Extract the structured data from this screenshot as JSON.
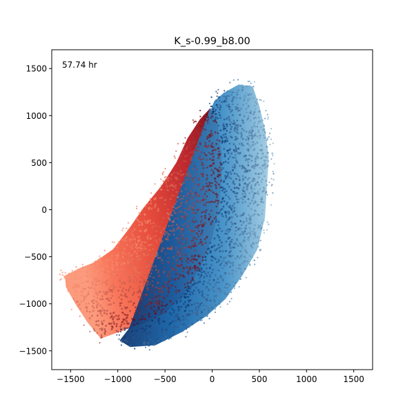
{
  "chart_data": {
    "type": "scatter",
    "title": "K_s-0.99_b8.00",
    "annotation": "57.74 hr",
    "xlabel": "",
    "ylabel": "",
    "xlim": [
      -1700,
      1700
    ],
    "ylim": [
      -1700,
      1700
    ],
    "x_ticks": [
      -1500,
      -1000,
      -500,
      0,
      500,
      1000,
      1500
    ],
    "y_ticks": [
      -1500,
      -1000,
      -500,
      0,
      500,
      1000,
      1500
    ],
    "x_tick_labels": [
      "−1500",
      "−1000",
      "−500",
      "0",
      "500",
      "1000",
      "1500"
    ],
    "y_tick_labels": [
      "−1500",
      "−1000",
      "−500",
      "0",
      "500",
      "1000",
      "1500"
    ],
    "grid": false,
    "legend": "none",
    "series": [
      {
        "colormap": "Reds",
        "dark_color": "#67000d",
        "light_color": "#fc9272",
        "inner_edge": [
          [
            -20,
            1080
          ],
          [
            60,
            900
          ],
          [
            100,
            600
          ],
          [
            100,
            300
          ],
          [
            70,
            0
          ],
          [
            0,
            -300
          ],
          [
            -120,
            -600
          ],
          [
            -300,
            -900
          ],
          [
            -500,
            -1100
          ],
          [
            -700,
            -1200
          ],
          [
            -880,
            -1260
          ]
        ],
        "outer_edge": [
          [
            -1180,
            -1370
          ],
          [
            -1320,
            -1200
          ],
          [
            -1450,
            -1000
          ],
          [
            -1550,
            -820
          ],
          [
            -1560,
            -700
          ],
          [
            -1400,
            -620
          ],
          [
            -1250,
            -560
          ],
          [
            -1050,
            -420
          ],
          [
            -880,
            -200
          ],
          [
            -720,
            30
          ],
          [
            -540,
            250
          ],
          [
            -380,
            500
          ],
          [
            -260,
            760
          ],
          [
            -130,
            960
          ],
          [
            -20,
            1080
          ]
        ]
      },
      {
        "colormap": "Blues",
        "dark_color": "#08306b",
        "light_color": "#9ecae1",
        "inner_edge": [
          [
            -20,
            1080
          ],
          [
            60,
            900
          ],
          [
            100,
            600
          ],
          [
            100,
            300
          ],
          [
            70,
            0
          ],
          [
            0,
            -300
          ],
          [
            -120,
            -600
          ],
          [
            -300,
            -900
          ],
          [
            -500,
            -1100
          ],
          [
            -700,
            -1200
          ],
          [
            -880,
            -1260
          ]
        ],
        "outer_edge": [
          [
            -880,
            -1260
          ],
          [
            -980,
            -1390
          ],
          [
            -870,
            -1460
          ],
          [
            -600,
            -1440
          ],
          [
            -320,
            -1300
          ],
          [
            -60,
            -1130
          ],
          [
            140,
            -950
          ],
          [
            320,
            -700
          ],
          [
            480,
            -420
          ],
          [
            560,
            -80
          ],
          [
            580,
            250
          ],
          [
            600,
            560
          ],
          [
            560,
            850
          ],
          [
            500,
            1100
          ],
          [
            430,
            1310
          ],
          [
            280,
            1330
          ],
          [
            120,
            1240
          ],
          [
            20,
            1150
          ]
        ]
      }
    ]
  }
}
